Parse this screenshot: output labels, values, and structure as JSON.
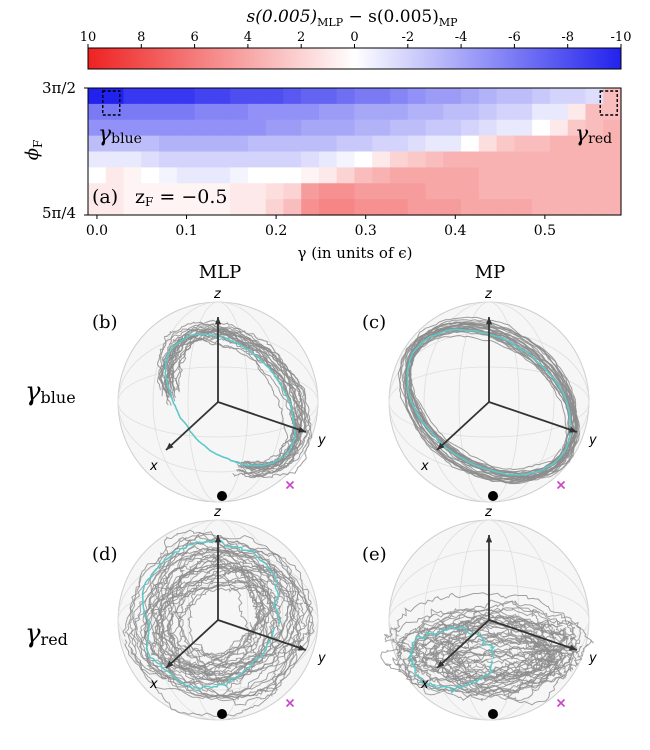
{
  "chart_data": [
    {
      "panel": "a",
      "type": "heatmap",
      "panel_label": "(a)",
      "annotation": "z_F = -0.5",
      "annotation_parts": {
        "sym": "z",
        "sub": "F",
        "rest": " = −0.5"
      },
      "colorbar": {
        "title": "s(0.005)_MLP − s(0.005)_MP",
        "title_parts": {
          "a": "s(0.005)",
          "sub1": "MLP",
          "b": " − s(0.005)",
          "sub2": "MP"
        },
        "ticks": [
          "10",
          "8",
          "6",
          "4",
          "2",
          "0",
          "-2",
          "-4",
          "-6",
          "-8",
          "-10"
        ],
        "range": [
          10,
          -10
        ],
        "low_color": "#2222ee",
        "mid_color": "#ffffff",
        "high_color": "#ee2222"
      },
      "xlabel": "γ (in units of ϵ)",
      "ylabel": "ϕF",
      "ylabel_parts": {
        "sym": "ϕ",
        "sub": "F"
      },
      "x_ticks": [
        "0.0",
        "0.1",
        "0.2",
        "0.3",
        "0.4",
        "0.5"
      ],
      "x_tick_values": [
        0.0,
        0.1,
        0.2,
        0.3,
        0.4,
        0.5
      ],
      "xlim": [
        -0.01,
        0.585
      ],
      "y_ticks": [
        "3π/2",
        "5π/4"
      ],
      "grid": {
        "cols": 30,
        "rows": 8
      },
      "markers": [
        {
          "name": "γblue",
          "sym": "γ",
          "sub": "blue",
          "col": 1,
          "row": 0
        },
        {
          "name": "γred",
          "sym": "γ",
          "sub": "red",
          "col": 29,
          "row": 0
        }
      ],
      "values_description_rows_top_to_bottom": [
        [
          -10,
          -10,
          -9,
          -9,
          -9,
          -9,
          -8.5,
          -8.5,
          -8,
          -8,
          -8,
          -7.5,
          -7,
          -7,
          -6.5,
          -6,
          -6,
          -5.5,
          -5,
          -4.5,
          -4.5,
          -4,
          -3.5,
          -3,
          -3,
          -2.5,
          -2,
          -2,
          -1.5,
          3
        ],
        [
          -6,
          -6,
          -6,
          -6,
          -6,
          -6,
          -5.5,
          -5.5,
          -5.5,
          -5,
          -5,
          -5,
          -5,
          -4.5,
          -4.5,
          -4,
          -4,
          -4,
          -3.5,
          -3.5,
          -3,
          -3,
          -2.5,
          -2,
          -2,
          -1,
          -1,
          1,
          3,
          3
        ],
        [
          -5,
          -5,
          -5,
          -5,
          -5,
          -5,
          -5,
          -5,
          -5,
          -5,
          -4.5,
          -4.5,
          -4,
          -4,
          -4,
          -3.5,
          -3.5,
          -3,
          -3,
          -2.5,
          -2.5,
          -2,
          -1.5,
          -1,
          -1,
          0,
          1,
          2.5,
          3,
          3.5
        ],
        [
          -3,
          -3,
          -3,
          -3,
          -3.5,
          -3.5,
          -3.5,
          -3.5,
          -3.5,
          -3,
          -3,
          -3,
          -3,
          -3,
          -2.5,
          -2.5,
          -2,
          -2,
          -1.5,
          -1,
          -1,
          0,
          1.5,
          2.5,
          3,
          3,
          3.5,
          3.5,
          3.5,
          3.5
        ],
        [
          -1,
          -1,
          -1,
          -1.5,
          -2,
          -2,
          -2,
          -2,
          -2,
          -2,
          -2,
          -2,
          -1.5,
          -1,
          -0.5,
          0,
          1,
          2,
          2.5,
          3,
          3.5,
          3.5,
          3.5,
          3.5,
          3.5,
          3.5,
          3.5,
          3.5,
          3.5,
          3.5
        ],
        [
          0,
          1,
          0.5,
          0,
          -0.5,
          -1,
          -1,
          -1,
          -0.5,
          0,
          0,
          0,
          0.5,
          1,
          2,
          3,
          3.5,
          4,
          4,
          4,
          4,
          4,
          3.5,
          3.5,
          3.5,
          3.5,
          3.5,
          3.5,
          3.5,
          3.5
        ],
        [
          1,
          1,
          0.5,
          0.5,
          0.5,
          0.5,
          0.5,
          0.5,
          1,
          1,
          1.5,
          2,
          4.5,
          5,
          5,
          4.5,
          4.5,
          4.5,
          4.5,
          4,
          4,
          4,
          3.5,
          3.5,
          3.5,
          3.5,
          3.5,
          3.5,
          3.5,
          3.5
        ],
        [
          1,
          1,
          0.5,
          0.5,
          0.5,
          0.5,
          0.5,
          0.5,
          1,
          1,
          2,
          3,
          5,
          5.5,
          5.5,
          5,
          5,
          5,
          4.5,
          4.5,
          4.5,
          4,
          4,
          4,
          4,
          3.5,
          3.5,
          3.5,
          3.5,
          3.5
        ]
      ]
    },
    {
      "type": "bloch_sphere_grid",
      "column_titles": [
        "MLP",
        "MP"
      ],
      "row_labels": [
        {
          "name": "γblue",
          "sym": "γ",
          "sub": "blue"
        },
        {
          "name": "γred",
          "sym": "γ",
          "sub": "red"
        }
      ],
      "axis_labels": {
        "x": "x",
        "y": "y",
        "z": "z"
      },
      "panels": [
        {
          "label": "(b)",
          "method": "MLP",
          "gamma": "γblue"
        },
        {
          "label": "(c)",
          "method": "MP",
          "gamma": "γblue"
        },
        {
          "label": "(d)",
          "method": "MLP",
          "gamma": "γred"
        },
        {
          "label": "(e)",
          "method": "MP",
          "gamma": "γred"
        }
      ],
      "colors": {
        "trajectory": "#8c8c8c",
        "mean_trajectory": "#5ec8c8",
        "start_point": "#000000",
        "target_marker": "#cc44cc"
      }
    }
  ]
}
